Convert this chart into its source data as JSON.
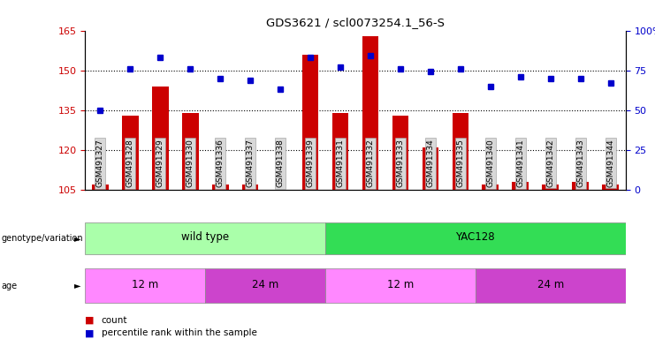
{
  "title": "GDS3621 / scl0073254.1_56-S",
  "samples": [
    "GSM491327",
    "GSM491328",
    "GSM491329",
    "GSM491330",
    "GSM491336",
    "GSM491337",
    "GSM491338",
    "GSM491339",
    "GSM491331",
    "GSM491332",
    "GSM491333",
    "GSM491334",
    "GSM491335",
    "GSM491340",
    "GSM491341",
    "GSM491342",
    "GSM491343",
    "GSM491344"
  ],
  "counts": [
    107,
    133,
    144,
    134,
    107,
    107,
    105,
    156,
    134,
    163,
    133,
    121,
    134,
    107,
    108,
    107,
    108,
    107
  ],
  "percentiles": [
    50,
    76,
    83,
    76,
    70,
    69,
    63,
    83,
    77,
    84,
    76,
    74,
    76,
    65,
    71,
    70,
    70,
    67
  ],
  "base": 105,
  "ylim_left": [
    105,
    165
  ],
  "ylim_right": [
    0,
    100
  ],
  "yticks_left": [
    105,
    120,
    135,
    150,
    165
  ],
  "yticks_right": [
    0,
    25,
    50,
    75,
    100
  ],
  "bar_color": "#CC0000",
  "dot_color": "#0000CC",
  "genotype_groups": [
    {
      "label": "wild type",
      "start": 0,
      "end": 8,
      "color": "#AAFFAA"
    },
    {
      "label": "YAC128",
      "start": 8,
      "end": 18,
      "color": "#33DD55"
    }
  ],
  "age_groups": [
    {
      "label": "12 m",
      "start": 0,
      "end": 4,
      "color": "#FF88FF"
    },
    {
      "label": "24 m",
      "start": 4,
      "end": 8,
      "color": "#CC44CC"
    },
    {
      "label": "12 m",
      "start": 8,
      "end": 13,
      "color": "#FF88FF"
    },
    {
      "label": "24 m",
      "start": 13,
      "end": 18,
      "color": "#CC44CC"
    }
  ],
  "left_axis_color": "#CC0000",
  "right_axis_color": "#0000CC"
}
